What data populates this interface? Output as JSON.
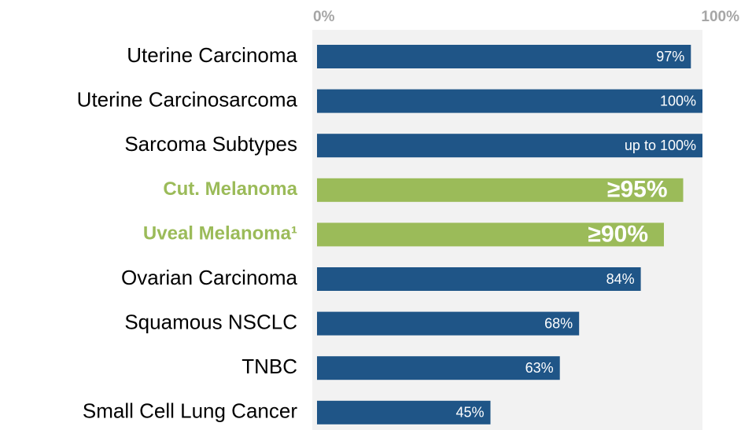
{
  "chart_data": {
    "type": "bar",
    "orientation": "horizontal",
    "categories": [
      "Uterine Carcinoma",
      "Uterine Carcinosarcoma",
      "Sarcoma Subtypes",
      "Cut. Melanoma",
      "Uveal Melanoma¹",
      "Ovarian Carcinoma",
      "Squamous NSCLC",
      "TNBC",
      "Small Cell Lung Cancer"
    ],
    "values": [
      97,
      100,
      100,
      95,
      90,
      84,
      68,
      63,
      45
    ],
    "value_labels": [
      "97%",
      "100%",
      "up to 100%",
      "≥95%",
      "≥90%",
      "84%",
      "68%",
      "63%",
      "45%"
    ],
    "colors": [
      "#1f5587",
      "#1f5587",
      "#1f5587",
      "#9bbb59",
      "#9bbb59",
      "#1f5587",
      "#1f5587",
      "#1f5587",
      "#1f5587"
    ],
    "label_colors": [
      "#000000",
      "#000000",
      "#000000",
      "#9bbb59",
      "#9bbb59",
      "#000000",
      "#000000",
      "#000000",
      "#000000"
    ],
    "xlim": [
      0,
      100
    ],
    "xticks": [
      {
        "value": 0,
        "label": "0%"
      },
      {
        "value": 100,
        "label": "100%"
      }
    ]
  }
}
